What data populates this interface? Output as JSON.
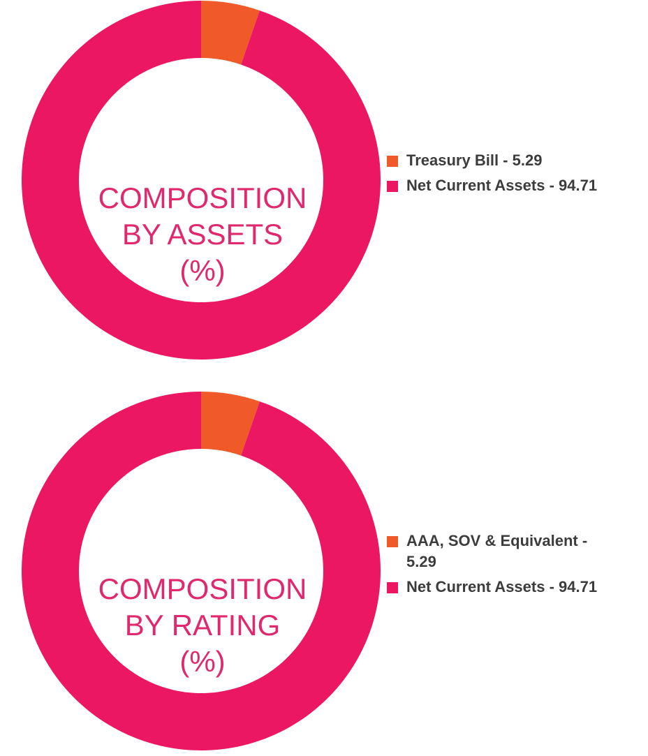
{
  "colors": {
    "orange": "#f05a28",
    "pink": "#eb1763",
    "title": "#e0286e",
    "legend_text": "#3c3c3c"
  },
  "chart_data": [
    {
      "type": "pie",
      "title_lines": [
        "COMPOSITION",
        "BY ASSETS",
        "(%)"
      ],
      "slices": [
        {
          "label": "Treasury Bill - 5.29",
          "value": 5.29,
          "color": "#f05a28"
        },
        {
          "label": "Net Current Assets - 94.71",
          "value": 94.71,
          "color": "#eb1763"
        }
      ]
    },
    {
      "type": "pie",
      "title_lines": [
        "COMPOSITION",
        "BY RATING",
        "(%)"
      ],
      "slices": [
        {
          "label": "AAA, SOV & Equivalent - 5.29",
          "value": 5.29,
          "color": "#f05a28"
        },
        {
          "label": "Net Current Assets - 94.71",
          "value": 94.71,
          "color": "#eb1763"
        }
      ]
    }
  ]
}
